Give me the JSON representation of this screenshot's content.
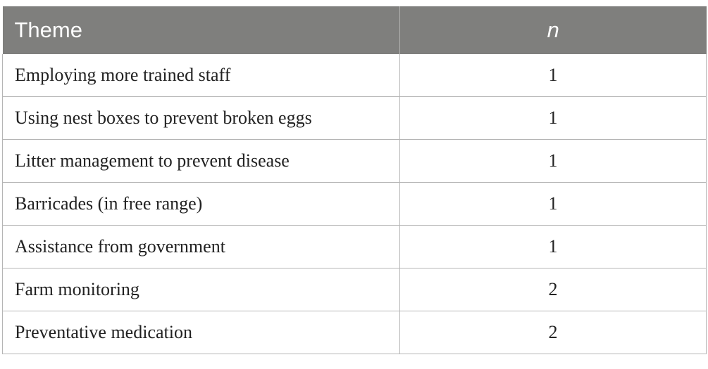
{
  "table": {
    "headers": {
      "theme": "Theme",
      "n": "n"
    },
    "rows": [
      {
        "theme": "Employing more trained staff",
        "n": "1"
      },
      {
        "theme": "Using nest boxes to prevent broken eggs",
        "n": "1"
      },
      {
        "theme": "Litter management to prevent disease",
        "n": "1"
      },
      {
        "theme": "Barricades (in free range)",
        "n": "1"
      },
      {
        "theme": "Assistance from government",
        "n": "1"
      },
      {
        "theme": "Farm monitoring",
        "n": "2"
      },
      {
        "theme": "Preventative medication",
        "n": "2"
      }
    ],
    "colors": {
      "header_bg": "#7f7f7d",
      "header_text": "#ffffff",
      "border": "#b5b5b5"
    }
  }
}
